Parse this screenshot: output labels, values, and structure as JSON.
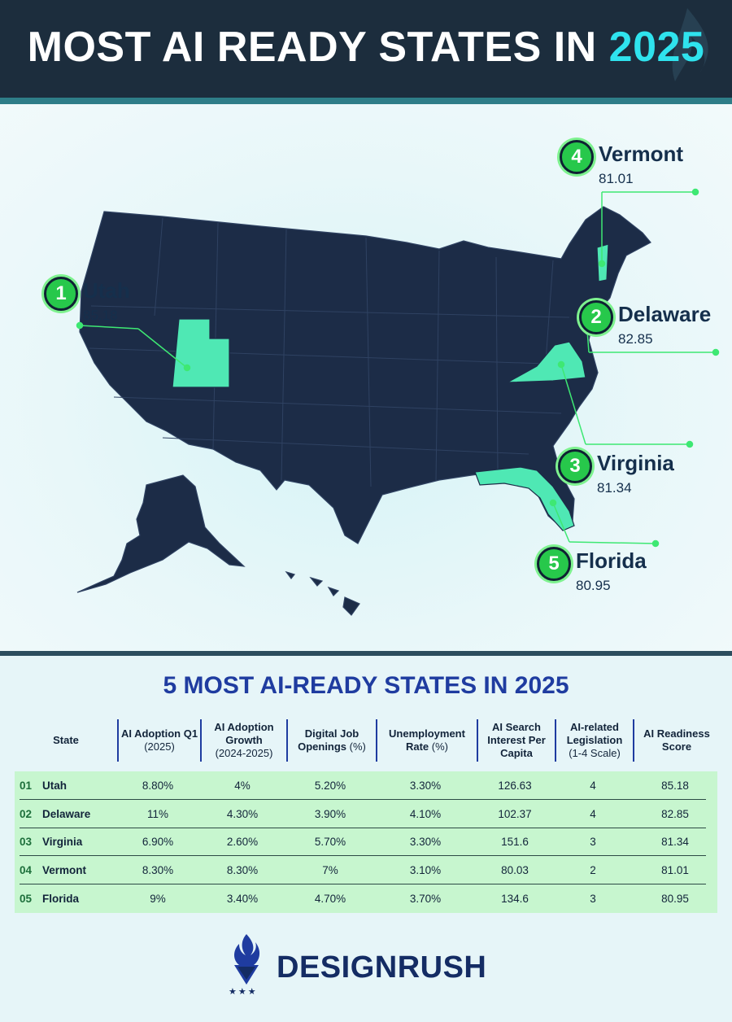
{
  "header": {
    "title_main": "MOST AI READY STATES IN",
    "title_year": "2025"
  },
  "map": {
    "highlight_color": "#4fe8b4",
    "land_color": "#1c2c47",
    "callouts": [
      {
        "rank": "1",
        "state": "Utah",
        "score": "85.18"
      },
      {
        "rank": "2",
        "state": "Delaware",
        "score": "82.85"
      },
      {
        "rank": "3",
        "state": "Virginia",
        "score": "81.34"
      },
      {
        "rank": "4",
        "state": "Vermont",
        "score": "81.01"
      },
      {
        "rank": "5",
        "state": "Florida",
        "score": "80.95"
      }
    ]
  },
  "table": {
    "title": "5 MOST AI-READY STATES IN 2025",
    "headers": [
      {
        "main": "State",
        "sub": ""
      },
      {
        "main": "AI Adoption Q1",
        "sub": "(2025)"
      },
      {
        "main": "AI Adoption Growth",
        "sub": "(2024-2025)"
      },
      {
        "main": "Digital Job Openings",
        "sub": "(%)"
      },
      {
        "main": "Unemployment Rate",
        "sub": "(%)"
      },
      {
        "main": "AI Search Interest Per Capita",
        "sub": ""
      },
      {
        "main": "AI-related Legislation",
        "sub": "(1-4 Scale)"
      },
      {
        "main": "AI Readiness Score",
        "sub": ""
      }
    ],
    "rows": [
      {
        "rank": "01",
        "state": "Utah",
        "adoption_q1": "8.80%",
        "growth": "4%",
        "job_openings": "5.20%",
        "unemployment": "3.30%",
        "search": "126.63",
        "legislation": "4",
        "score": "85.18"
      },
      {
        "rank": "02",
        "state": "Delaware",
        "adoption_q1": "11%",
        "growth": "4.30%",
        "job_openings": "3.90%",
        "unemployment": "4.10%",
        "search": "102.37",
        "legislation": "4",
        "score": "82.85"
      },
      {
        "rank": "03",
        "state": "Virginia",
        "adoption_q1": "6.90%",
        "growth": "2.60%",
        "job_openings": "5.70%",
        "unemployment": "3.30%",
        "search": "151.6",
        "legislation": "3",
        "score": "81.34"
      },
      {
        "rank": "04",
        "state": "Vermont",
        "adoption_q1": "8.30%",
        "growth": "8.30%",
        "job_openings": "7%",
        "unemployment": "3.10%",
        "search": "80.03",
        "legislation": "2",
        "score": "81.01"
      },
      {
        "rank": "05",
        "state": "Florida",
        "adoption_q1": "9%",
        "growth": "3.40%",
        "job_openings": "4.70%",
        "unemployment": "3.70%",
        "search": "134.6",
        "legislation": "3",
        "score": "80.95"
      }
    ]
  },
  "footer": {
    "brand": "DESIGNRUSH",
    "stars": "★★★"
  }
}
